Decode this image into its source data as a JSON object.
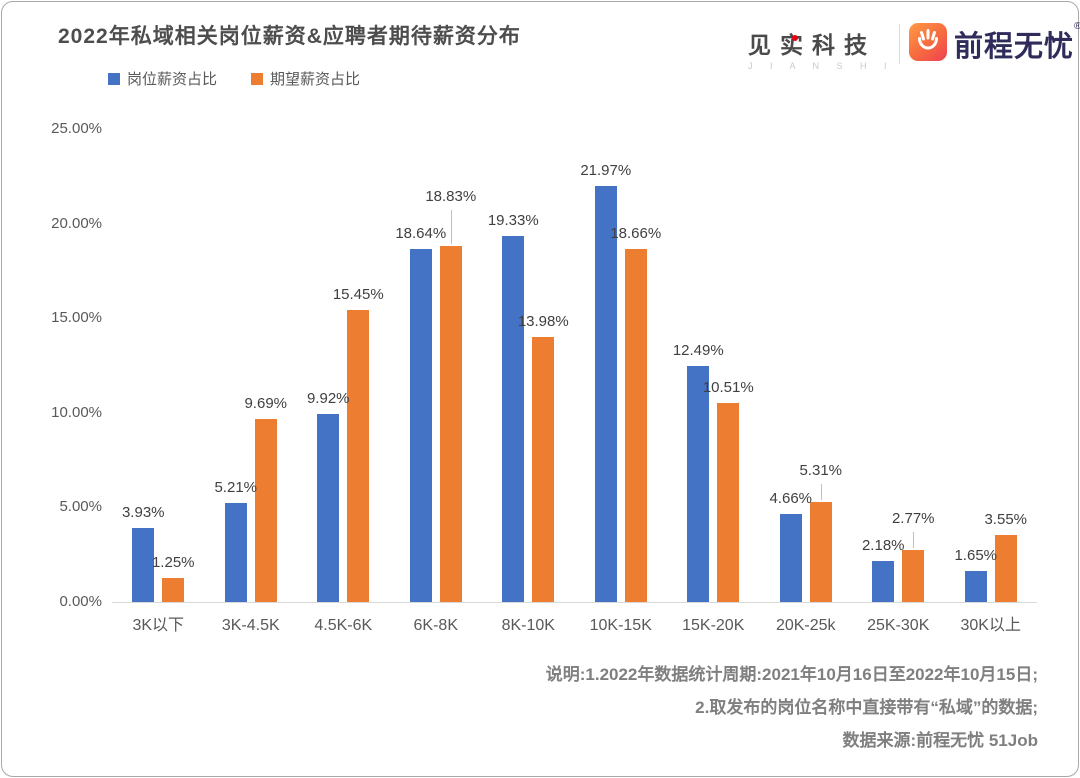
{
  "header": {
    "title": "2022年私域相关岗位薪资&应聘者期待薪资分布",
    "logos": {
      "jianshi": "见实科技",
      "jianshi_sub": "J I A N S H I",
      "job51": "前程无忧",
      "reg_mark": "®"
    }
  },
  "colors": {
    "series_blue": "#4472C4",
    "series_orange": "#ED7D31",
    "axis_text": "#595959",
    "data_label": "#404040",
    "axis_line": "#D9D9D9",
    "notes_text": "#7F7F7F",
    "brand_navy": "#2F2C5B",
    "brand_orange_red": "#EF3F54"
  },
  "legend": [
    {
      "label": "岗位薪资占比",
      "color": "#4472C4"
    },
    {
      "label": "期望薪资占比",
      "color": "#ED7D31"
    }
  ],
  "chart_data": {
    "type": "bar",
    "title": "2022年私域相关岗位薪资&应聘者期待薪资分布",
    "categories": [
      "3K以下",
      "3K-4.5K",
      "4.5K-6K",
      "6K-8K",
      "8K-10K",
      "10K-15K",
      "15K-20K",
      "20K-25k",
      "25K-30K",
      "30K以上"
    ],
    "series": [
      {
        "name": "岗位薪资占比",
        "color": "#4472C4",
        "values": [
          3.93,
          5.21,
          9.92,
          18.64,
          19.33,
          21.97,
          12.49,
          4.66,
          2.18,
          1.65
        ]
      },
      {
        "name": "期望薪资占比",
        "color": "#ED7D31",
        "values": [
          1.25,
          9.69,
          15.45,
          18.83,
          13.98,
          18.66,
          10.51,
          5.31,
          2.77,
          3.55
        ]
      }
    ],
    "xlabel": "",
    "ylabel": "",
    "ylim": [
      0,
      25
    ],
    "yticks": [
      "0.00%",
      "5.00%",
      "10.00%",
      "15.00%",
      "20.00%",
      "25.00%"
    ],
    "grid": false,
    "legend_position": "top-left",
    "data_labels": "all points, formatted as percent with two decimals",
    "label_leader_lines": [
      {
        "series": "期望薪资占比",
        "index": 3,
        "raise": 34
      },
      {
        "series": "期望薪资占比",
        "index": 7,
        "raise": 16
      },
      {
        "series": "期望薪资占比",
        "index": 8,
        "raise": 16
      }
    ]
  },
  "notes": [
    "说明:1.2022年数据统计周期:2021年10月16日至2022年10月15日;",
    "2.取发布的岗位名称中直接带有“私域”的数据;",
    "数据来源:前程无忧 51Job"
  ]
}
